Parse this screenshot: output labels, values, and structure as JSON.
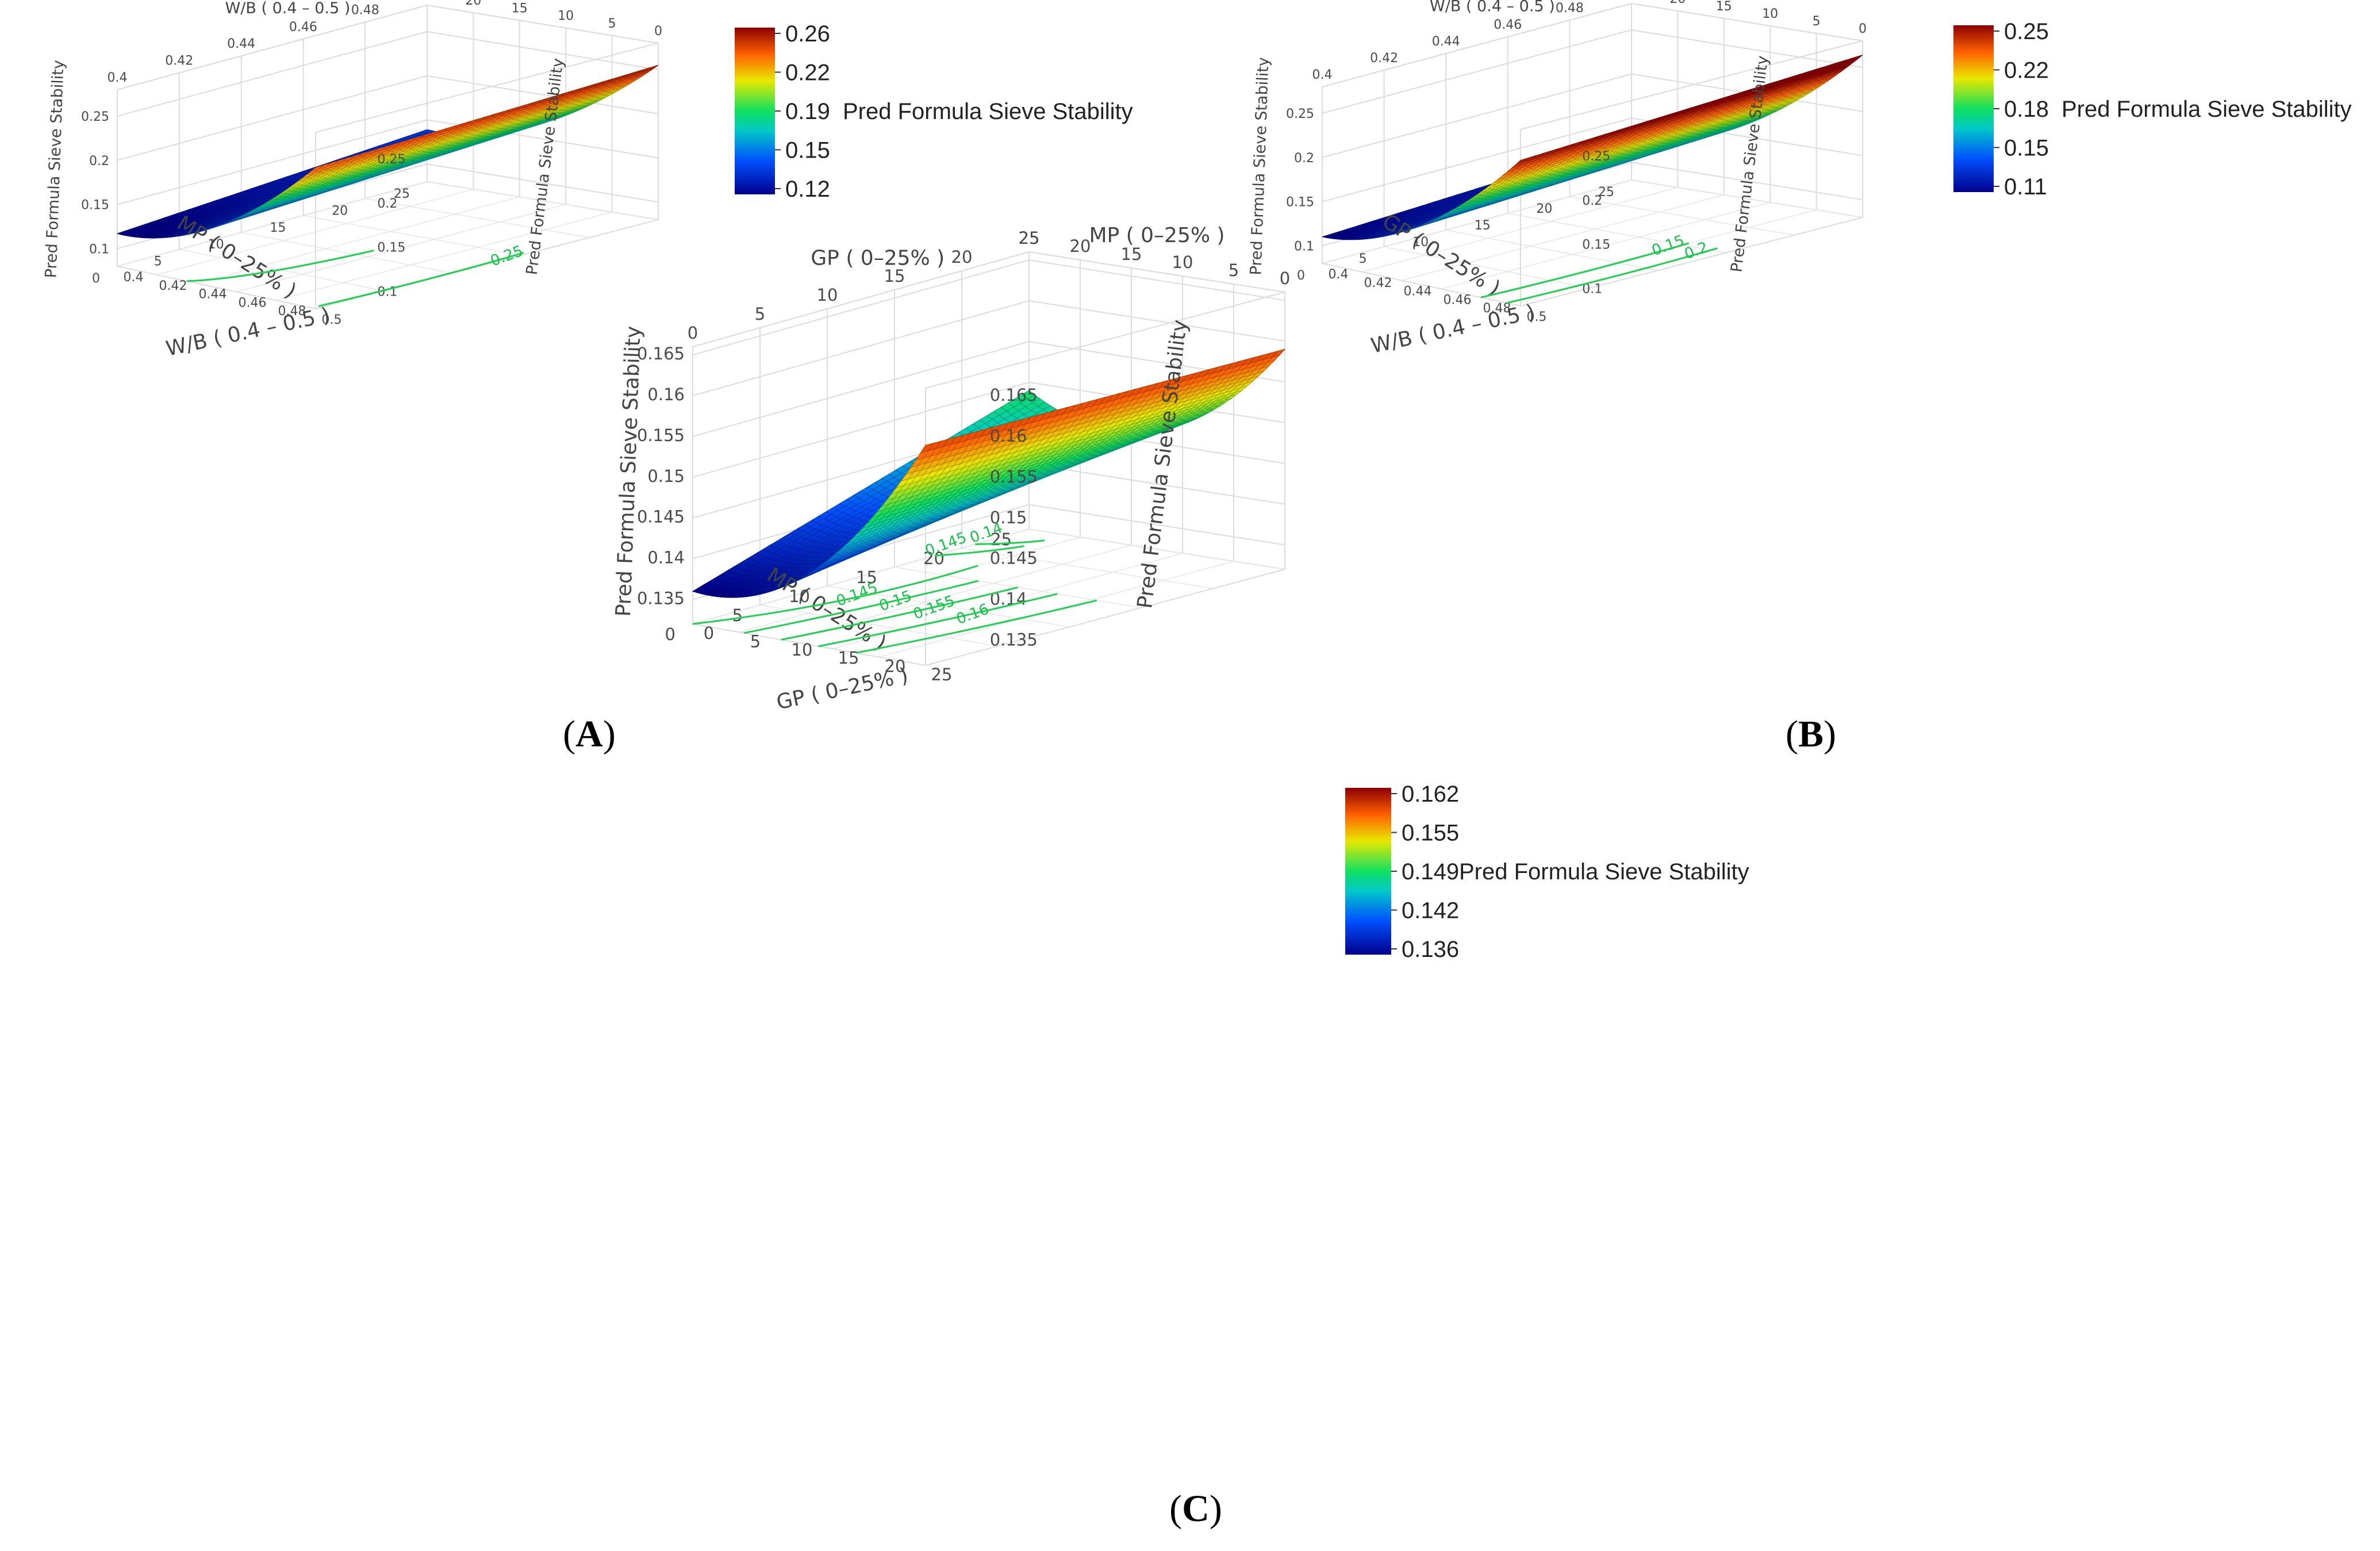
{
  "chart_data": [
    {
      "type": "surface",
      "panel_label": "(A)",
      "z_axis_label": "Pred Formula Sieve Stability",
      "x_axis": {
        "label": "W/B ( 0.4 – 0.5 )",
        "ticks": [
          "0.4",
          "0.42",
          "0.44",
          "0.46",
          "0.48",
          "0.5"
        ],
        "range": [
          0.4,
          0.5
        ]
      },
      "y_axis": {
        "label": "MP ( 0–25% )",
        "ticks": [
          "0",
          "5",
          "10",
          "15",
          "20",
          "25"
        ],
        "range": [
          0,
          25
        ]
      },
      "z_ticks": [
        "0.1",
        "0.15",
        "0.2",
        "0.25"
      ],
      "colorbar": {
        "ticks": [
          "0.26",
          "0.22",
          "0.19",
          "0.15",
          "0.12"
        ],
        "range": [
          0.12,
          0.26
        ],
        "label": "Pred Formula Sieve Stability"
      },
      "contour_labels": [
        "0.25"
      ],
      "corner_values": {
        "wb_0.4_mp_25": 0.12,
        "wb_0.4_mp_0": 0.115,
        "wb_0.5_mp_25": 0.26,
        "wb_0.5_mp_0": 0.25,
        "minimum": 0.105
      }
    },
    {
      "type": "surface",
      "panel_label": "(B)",
      "z_axis_label": "Pred Formula Sieve Stability",
      "x_axis": {
        "label": "W/B ( 0.4 – 0.5 )",
        "ticks": [
          "0.4",
          "0.42",
          "0.44",
          "0.46",
          "0.48",
          "0.5"
        ],
        "range": [
          0.4,
          0.5
        ]
      },
      "y_axis": {
        "label": "GP ( 0–25% )",
        "ticks": [
          "0",
          "5",
          "10",
          "15",
          "20",
          "25"
        ],
        "range": [
          0,
          25
        ]
      },
      "z_ticks": [
        "0.1",
        "0.15",
        "0.2",
        "0.25"
      ],
      "colorbar": {
        "ticks": [
          "0.25",
          "0.22",
          "0.18",
          "0.15",
          "0.11"
        ],
        "range": [
          0.11,
          0.25
        ],
        "label": "Pred Formula Sieve Stability"
      },
      "contour_labels": [
        "0.15",
        "0.2"
      ],
      "corner_values": {
        "wb_0.4_gp_25": 0.125,
        "wb_0.4_gp_0": 0.11,
        "wb_0.5_gp_25": 0.26,
        "wb_0.5_gp_0": 0.245
      }
    },
    {
      "type": "surface",
      "panel_label": "(C)",
      "z_axis_label": "Pred Formula Sieve Stability",
      "x_axis": {
        "label": "GP ( 0–25% )",
        "ticks": [
          "0",
          "5",
          "10",
          "15",
          "20",
          "25"
        ],
        "range": [
          0,
          25
        ]
      },
      "y_axis": {
        "label": "MP ( 0–25% )",
        "ticks": [
          "0",
          "5",
          "10",
          "15",
          "20",
          "25"
        ],
        "range": [
          0,
          25
        ]
      },
      "z_ticks": [
        "0.135",
        "0.14",
        "0.145",
        "0.15",
        "0.155",
        "0.16",
        "0.165"
      ],
      "colorbar": {
        "ticks": [
          "0.162",
          "0.155",
          "0.149",
          "0.142",
          "0.136"
        ],
        "range": [
          0.136,
          0.162
        ],
        "label": "Pred Formula Sieve Stability"
      },
      "contour_labels": [
        "0.145",
        "0.14",
        "0.145",
        "0.15",
        "0.155",
        "0.16"
      ],
      "corner_values": {
        "gp_0_mp_25": 0.149,
        "gp_0_mp_0": 0.136,
        "gp_25_mp_25": 0.146,
        "gp_25_mp_0": 0.163
      }
    }
  ]
}
